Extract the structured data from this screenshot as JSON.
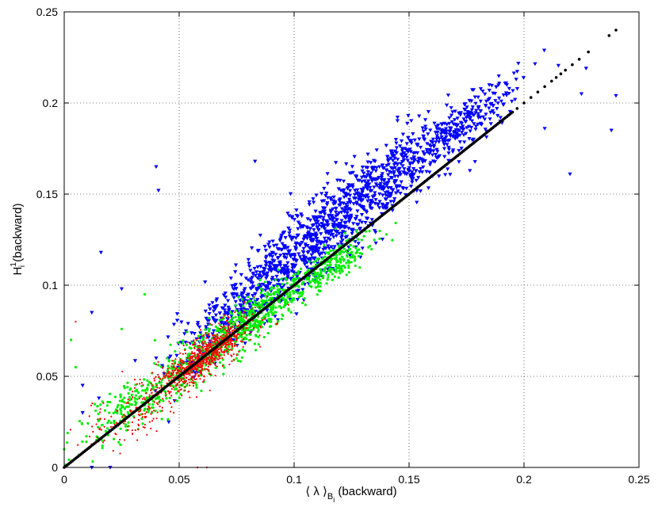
{
  "chart_data": {
    "type": "scatter",
    "title": "",
    "xlabel": "⟨ λ ⟩",
    "xlabel_sub": "B",
    "xlabel_subsub": "i",
    "xlabel_suffix": " (backward)",
    "ylabel": "H",
    "ylabel_sup": "1",
    "ylabel_sub": "i",
    "ylabel_suffix": " (backward)",
    "xlim": [
      0,
      0.25
    ],
    "ylim": [
      0,
      0.25
    ],
    "xticks": [
      0,
      0.05,
      0.1,
      0.15,
      0.2,
      0.25
    ],
    "yticks": [
      0,
      0.05,
      0.1,
      0.15,
      0.2,
      0.25
    ],
    "xtick_labels": [
      "0",
      "0.05",
      "0.1",
      "0.15",
      "0.2",
      "0.25"
    ],
    "ytick_labels": [
      "0",
      "0.05",
      "0.1",
      "0.15",
      "0.2",
      "0.25"
    ],
    "grid": true,
    "legend": "none",
    "series": [
      {
        "color": "#0000ff",
        "marker": "triangle-down",
        "clouds": [
          {
            "cx": 0.075,
            "cy": 0.085,
            "sx": 0.015,
            "sy": 0.018,
            "n": 260
          },
          {
            "cx": 0.105,
            "cy": 0.12,
            "sx": 0.018,
            "sy": 0.02,
            "n": 560
          },
          {
            "cx": 0.14,
            "cy": 0.16,
            "sx": 0.018,
            "sy": 0.018,
            "n": 520
          },
          {
            "cx": 0.175,
            "cy": 0.19,
            "sx": 0.012,
            "sy": 0.013,
            "n": 200
          }
        ],
        "outliers": [
          [
            0.04,
            0.165
          ],
          [
            0.041,
            0.152
          ],
          [
            0.083,
            0.168
          ],
          [
            0.016,
            0.118
          ],
          [
            0.025,
            0.098
          ],
          [
            0.012,
            0.085
          ],
          [
            0.238,
            0.185
          ],
          [
            0.24,
            0.204
          ],
          [
            0.209,
            0.186
          ],
          [
            0.22,
            0.161
          ],
          [
            0.225,
            0.205
          ],
          [
            0.227,
            0.219
          ],
          [
            0.04,
            0.06
          ],
          [
            0.008,
            0.03
          ],
          [
            0.012,
            0.0
          ],
          [
            0.02,
            0.0
          ],
          [
            0.008,
            0.045
          ],
          [
            0.02,
            0.02
          ]
        ]
      },
      {
        "color": "#00ee00",
        "marker": "circle",
        "clouds": [
          {
            "cx": 0.03,
            "cy": 0.035,
            "sx": 0.015,
            "sy": 0.016,
            "n": 220
          },
          {
            "cx": 0.06,
            "cy": 0.06,
            "sx": 0.012,
            "sy": 0.012,
            "n": 300
          },
          {
            "cx": 0.085,
            "cy": 0.085,
            "sx": 0.012,
            "sy": 0.011,
            "n": 360
          },
          {
            "cx": 0.115,
            "cy": 0.11,
            "sx": 0.01,
            "sy": 0.009,
            "n": 260
          }
        ],
        "outliers": [
          [
            0.005,
            0.055
          ],
          [
            0.003,
            0.07
          ],
          [
            0.025,
            0.076
          ],
          [
            0.035,
            0.095
          ],
          [
            0.0,
            0.01
          ]
        ]
      },
      {
        "color": "#ff0000",
        "marker": "dot",
        "clouds": [
          {
            "cx": 0.062,
            "cy": 0.062,
            "sx": 0.009,
            "sy": 0.009,
            "n": 700
          },
          {
            "cx": 0.04,
            "cy": 0.04,
            "sx": 0.016,
            "sy": 0.015,
            "n": 260
          }
        ],
        "outliers": [
          [
            0.005,
            0.08
          ],
          [
            0.058,
            0.0
          ],
          [
            0.062,
            0.0
          ],
          [
            0.005,
            0.005
          ]
        ]
      },
      {
        "color": "#000000",
        "marker": "dot",
        "line": {
          "x0": 0.0,
          "x1": 0.195,
          "n": 320
        },
        "points": [
          [
            0.197,
            0.197
          ],
          [
            0.2,
            0.2
          ],
          [
            0.203,
            0.203
          ],
          [
            0.206,
            0.206
          ],
          [
            0.209,
            0.209
          ],
          [
            0.212,
            0.212
          ],
          [
            0.214,
            0.214
          ],
          [
            0.216,
            0.216
          ],
          [
            0.218,
            0.218
          ],
          [
            0.221,
            0.221
          ],
          [
            0.224,
            0.224
          ],
          [
            0.228,
            0.228
          ],
          [
            0.237,
            0.237
          ],
          [
            0.24,
            0.24
          ]
        ]
      }
    ]
  }
}
